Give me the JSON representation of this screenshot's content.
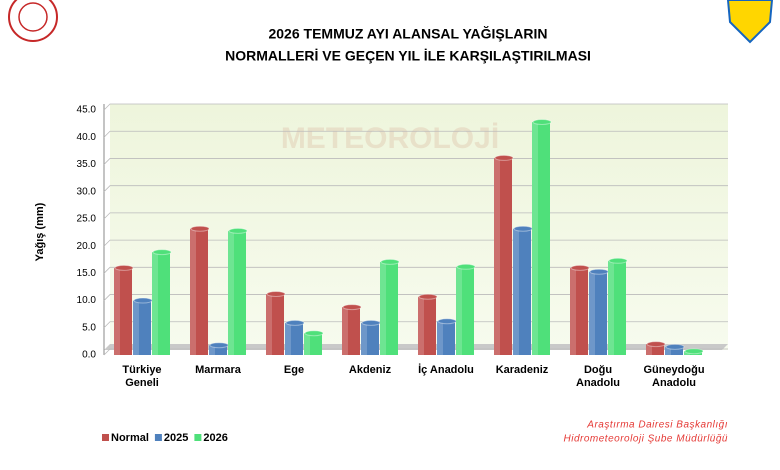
{
  "chart_data": {
    "type": "bar",
    "title": [
      "2026 TEMMUZ AYI ALANSAL YAĞIŞLARIN",
      "NORMALLERİ VE GEÇEN YIL İLE KARŞILAŞTIRILMASI"
    ],
    "watermark": "METEOROLOJİ",
    "y_label": "Yağış (mm)",
    "categories": [
      "Türkiye Geneli",
      "Marmara",
      "Ege",
      "Akdeniz",
      "İç Anadolu",
      "Karadeniz",
      "Doğu Anadolu",
      "Güneydoğu Anadolu"
    ],
    "series": [
      {
        "name": "Normal",
        "color": "#c0504d",
        "values": [
          16.0,
          23.2,
          11.2,
          8.8,
          10.7,
          36.2,
          16.0,
          2.0
        ]
      },
      {
        "name": "2025",
        "color": "#4f81bd",
        "values": [
          10.0,
          1.8,
          5.9,
          5.9,
          6.2,
          23.2,
          15.3,
          1.5
        ]
      },
      {
        "name": "2026",
        "color": "#4fe07a",
        "values": [
          18.9,
          22.8,
          4.0,
          17.1,
          16.2,
          42.8,
          17.3,
          0.7
        ]
      }
    ],
    "ylim": [
      0,
      45
    ],
    "yticks": [
      {
        "value": 0,
        "label": "0.0"
      },
      {
        "value": 5,
        "label": "5.0"
      },
      {
        "value": 10,
        "label": "10.0"
      },
      {
        "value": 15,
        "label": "15.0"
      },
      {
        "value": 20,
        "label": "20.0"
      },
      {
        "value": 25,
        "label": "25.0"
      },
      {
        "value": 30,
        "label": "30.0"
      },
      {
        "value": 35,
        "label": "35.0"
      },
      {
        "value": 40,
        "label": "40.0"
      },
      {
        "value": 45,
        "label": "45.0"
      }
    ],
    "grid": true,
    "source": [
      "Araştırma Dairesi Başkanlığı",
      "Hidrometeoroloji Şube Müdürlüğü"
    ]
  }
}
